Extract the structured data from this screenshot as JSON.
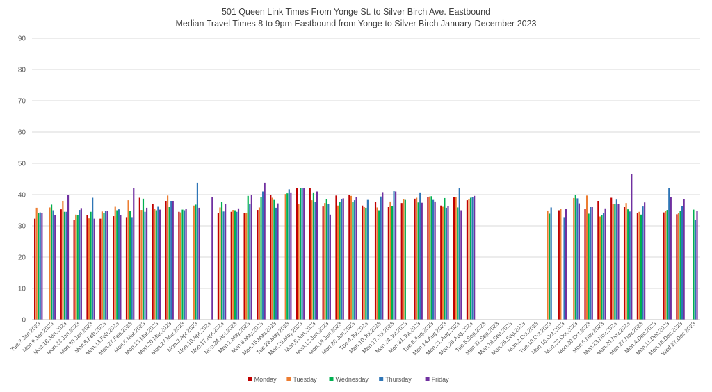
{
  "chart_data": {
    "type": "bar",
    "title": "501 Queen Link Times From Yonge St. to Silver Birch Ave. Eastbound",
    "subtitle": "Median Travel Times 8 to 9pm Eastbound from Yonge to Silver Birch January-December 2023",
    "xlabel": "",
    "ylabel": "",
    "ylim": [
      0,
      90
    ],
    "yticks": [
      0,
      10,
      20,
      30,
      40,
      50,
      60,
      70,
      80,
      90
    ],
    "grid": true,
    "legend_position": "bottom",
    "categories": [
      "Tue.3.Jan.2023",
      "Mon.9.Jan.2023",
      "Mon.16.Jan.2023",
      "Mon.23.Jan.2023",
      "Mon.30.Jan.2023",
      "Mon.6.Feb.2023",
      "Mon.13.Feb.2023",
      "Mon.27.Feb.2023",
      "Mon.6.Mar.2023",
      "Mon.13.Mar.2023",
      "Mon.20.Mar.2023",
      "Mon.27.Mar.2023",
      "Mon.3.Apr.2023",
      "Mon.10.Apr.2023",
      "Mon.17.Apr.2023",
      "Mon.24.Apr.2023",
      "Mon.1.May.2023",
      "Mon.8.May.2023",
      "Mon.15.May.2023",
      "Tue.23.May.2023",
      "Mon.29.May.2023",
      "Mon.5.Jun.2023",
      "Mon.12.Jun.2023",
      "Mon.19.Jun.2023",
      "Mon.26.Jun.2023",
      "Tue.4.Jul.2023",
      "Mon.10.Jul.2023",
      "Mon.17.Jul.2023",
      "Mon.24.Jul.2023",
      "Mon.31.Jul.2023",
      "Tue.8.Aug.2023",
      "Mon.14.Aug.2023",
      "Mon.21.Aug.2023",
      "Mon.28.Aug.2023",
      "Tue.5.Sep.2023",
      "Mon.11.Sep.2023",
      "Mon.18.Sep.2023",
      "Mon.25.Sep.2023",
      "Mon.2.Oct.2023",
      "Tue.10.Oct.2023",
      "Mon.16.Oct.2023",
      "Mon.23.Oct.2023",
      "Mon.30.Oct.2023",
      "Mon.6.Nov.2023",
      "Mon.13.Nov.2023",
      "Mon.20.Nov.2023",
      "Mon.27.Nov.2023",
      "Mon.4.Dec.2023",
      "Mon.11.Dec.2023",
      "Mon.18.Dec.2023",
      "Wed.27.Dec.2023"
    ],
    "series": [
      {
        "name": "Monday",
        "color": "#c00000",
        "values": [
          32.3,
          null,
          35.3,
          32.0,
          33.4,
          32.3,
          33.1,
          32.8,
          39.0,
          37.0,
          38.0,
          34.5,
          null,
          null,
          34.2,
          34.5,
          34.0,
          35.1,
          40.0,
          null,
          42.0,
          42.0,
          36.2,
          39.7,
          40.0,
          36.5,
          37.6,
          36.0,
          37.3,
          38.7,
          39.3,
          36.5,
          39.3,
          38.2,
          null,
          null,
          null,
          null,
          null,
          null,
          35.0,
          null,
          35.5,
          38.0,
          39.0,
          36.0,
          34.0,
          null,
          34.3,
          33.7,
          null
        ]
      },
      {
        "name": "Tuesday",
        "color": "#ed7d31",
        "values": [
          35.8,
          35.9,
          38.0,
          33.6,
          32.4,
          34.6,
          36.1,
          38.2,
          35.1,
          35.5,
          39.7,
          34.3,
          36.5,
          null,
          35.9,
          35.1,
          34.0,
          35.9,
          39.0,
          40.2,
          37.0,
          38.2,
          37.3,
          36.5,
          39.6,
          36.0,
          35.9,
          37.8,
          38.6,
          39.0,
          39.4,
          36.1,
          39.3,
          38.6,
          null,
          null,
          null,
          null,
          null,
          34.9,
          35.5,
          38.9,
          39.7,
          33.0,
          36.9,
          37.3,
          34.5,
          null,
          34.7,
          34.0,
          null
        ]
      },
      {
        "name": "Wednesday",
        "color": "#00b050",
        "values": [
          34.0,
          36.8,
          34.5,
          33.4,
          34.5,
          34.1,
          35.0,
          34.8,
          38.7,
          35.0,
          36.0,
          35.2,
          36.8,
          null,
          37.6,
          35.0,
          39.6,
          39.2,
          38.3,
          40.4,
          42.0,
          40.7,
          38.6,
          37.6,
          37.6,
          35.8,
          35.0,
          36.4,
          38.3,
          37.5,
          39.5,
          38.9,
          35.9,
          39.0,
          null,
          null,
          null,
          null,
          null,
          33.9,
          null,
          40.0,
          33.9,
          33.4,
          37.0,
          35.3,
          33.6,
          null,
          35.1,
          34.8,
          35.2
        ]
      },
      {
        "name": "Thursday",
        "color": "#2e75b6",
        "values": [
          34.3,
          35.0,
          34.5,
          35.1,
          39.0,
          34.8,
          35.3,
          32.8,
          34.5,
          36.1,
          38.0,
          35.0,
          43.8,
          null,
          34.6,
          34.5,
          37.0,
          41.0,
          35.8,
          41.7,
          42.0,
          37.7,
          37.0,
          38.6,
          38.2,
          38.3,
          39.4,
          41.1,
          null,
          40.7,
          38.3,
          35.8,
          42.1,
          39.2,
          null,
          null,
          null,
          null,
          null,
          35.9,
          32.8,
          38.8,
          36.0,
          34.0,
          38.4,
          34.6,
          36.2,
          null,
          42.0,
          36.4,
          32.0
        ]
      },
      {
        "name": "Friday",
        "color": "#7030a0",
        "values": [
          34.0,
          33.5,
          40.0,
          35.7,
          32.3,
          34.8,
          33.4,
          42.0,
          35.8,
          35.2,
          38.0,
          35.4,
          35.8,
          39.2,
          37.1,
          35.6,
          39.8,
          43.8,
          37.2,
          40.7,
          42.0,
          41.0,
          33.6,
          38.8,
          39.3,
          null,
          40.8,
          41.0,
          null,
          37.4,
          37.8,
          36.3,
          35.0,
          39.6,
          null,
          null,
          null,
          null,
          null,
          null,
          35.5,
          37.2,
          36.0,
          35.6,
          37.0,
          46.5,
          37.5,
          null,
          39.3,
          38.6,
          34.7
        ]
      }
    ]
  }
}
